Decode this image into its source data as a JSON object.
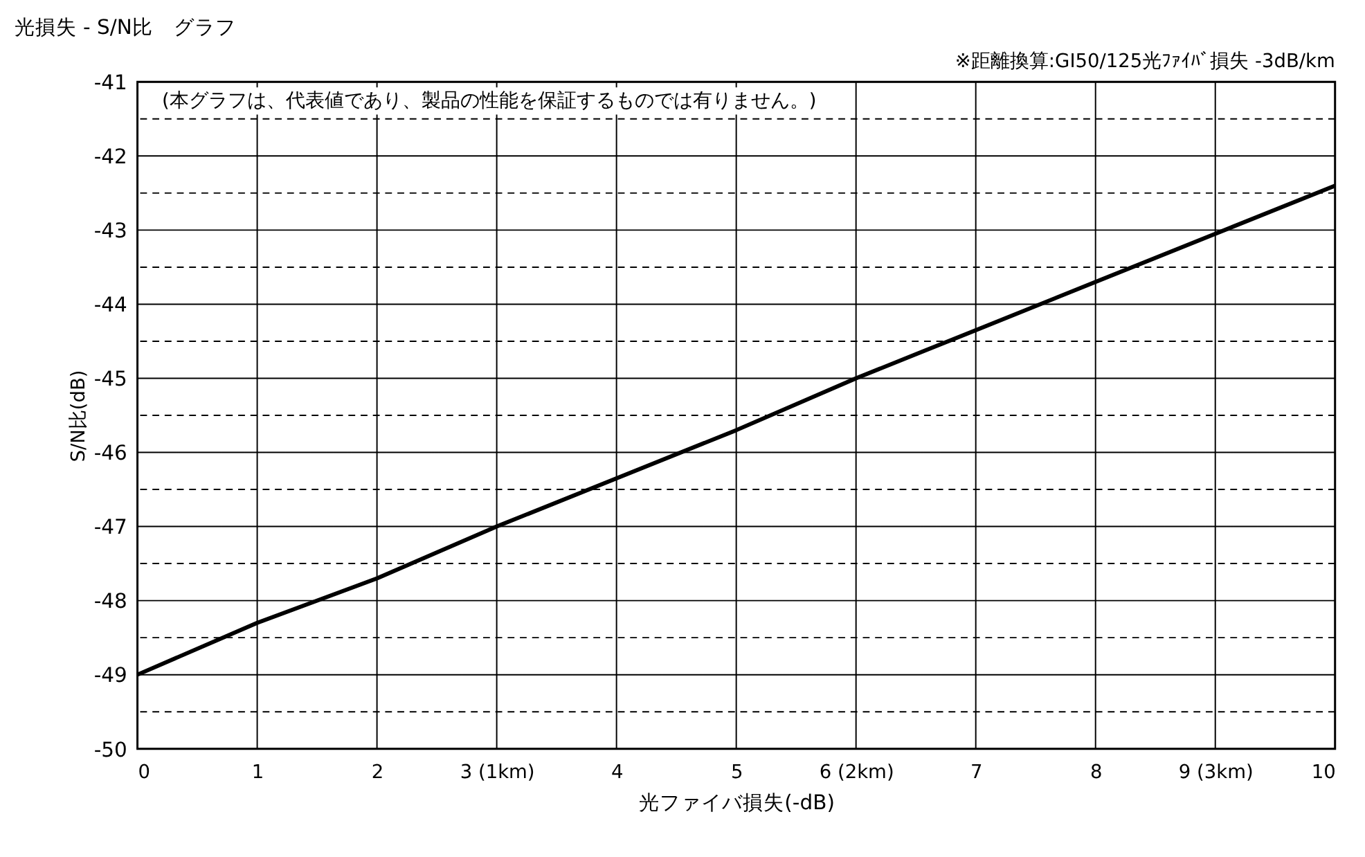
{
  "chart_data": {
    "type": "line",
    "title": "光損失 - S/N比　グラフ",
    "xlabel": "光ファイバ損失(-dB)",
    "ylabel": "S/N比(dB)",
    "annotations": [
      "※距離換算:GI50/125光ﾌｧｲﾊﾞ損失 -3dB/km",
      "(本グラフは、代表値であり、製品の性能を保証するものでは有りません。)"
    ],
    "x": [
      0,
      1,
      2,
      3,
      4,
      5,
      6,
      7,
      8,
      9,
      10
    ],
    "series": [
      {
        "color": "#000000",
        "values": [
          -49.0,
          -48.3,
          -47.7,
          -47.0,
          -46.35,
          -45.7,
          -45.0,
          -44.35,
          -43.7,
          -43.05,
          -42.4
        ]
      }
    ],
    "xlim": [
      0,
      10
    ],
    "xticks": [
      0,
      1,
      2,
      {
        "value": 3,
        "label": "3 (1km)"
      },
      4,
      5,
      {
        "value": 6,
        "label": "6 (2km)"
      },
      7,
      8,
      {
        "value": 9,
        "label": "9 (3km)"
      },
      10
    ],
    "ylim": [
      -50,
      -41
    ],
    "yticks": [
      -50,
      {
        "value": -49.5,
        "label": null
      },
      -49,
      {
        "value": -48.5,
        "label": null
      },
      -48,
      {
        "value": -47.5,
        "label": null
      },
      -47,
      {
        "value": -46.5,
        "label": null
      },
      -46,
      {
        "value": -45.5,
        "label": null
      },
      -45,
      {
        "value": -44.5,
        "label": null
      },
      -44,
      {
        "value": -43.5,
        "label": null
      },
      -43,
      {
        "value": -42.5,
        "label": null
      },
      -42,
      {
        "value": -41.5,
        "label": null
      },
      -41
    ],
    "grid": true,
    "marker": "none",
    "line_style": "solid"
  }
}
